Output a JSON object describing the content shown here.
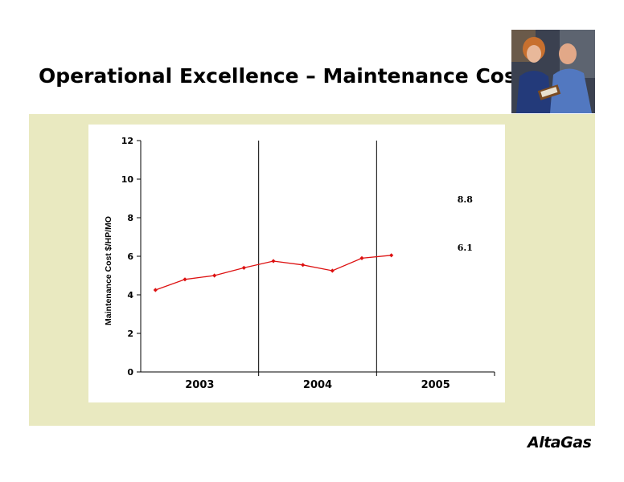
{
  "title": "Operational Excellence – Maintenance Costs",
  "logo": "AltaGas",
  "photo": "two-workers-reviewing-clipboard-photo",
  "chart_data": {
    "type": "line",
    "ylabel": "Maintenance Cost $/HP/MO",
    "ylim": [
      0,
      12
    ],
    "yticks": [
      0,
      2,
      4,
      6,
      8,
      10,
      12
    ],
    "xlim": [
      0,
      12
    ],
    "year_groups": [
      {
        "label": "2003",
        "start": 0,
        "end": 4
      },
      {
        "label": "2004",
        "start": 4,
        "end": 8
      },
      {
        "label": "2005",
        "start": 8,
        "end": 12
      }
    ],
    "x": [
      0.5,
      1.5,
      2.5,
      3.5,
      4.5,
      5.5,
      6.5,
      7.5,
      8.5
    ],
    "values": [
      4.25,
      4.8,
      5.0,
      5.4,
      5.75,
      5.55,
      5.25,
      5.9,
      6.05
    ],
    "color": "#dd1111",
    "annotations": [
      {
        "text": "8.8",
        "x": 11,
        "y": 8.8
      },
      {
        "text": "6.1",
        "x": 11,
        "y": 6.3
      }
    ],
    "grid": false
  }
}
